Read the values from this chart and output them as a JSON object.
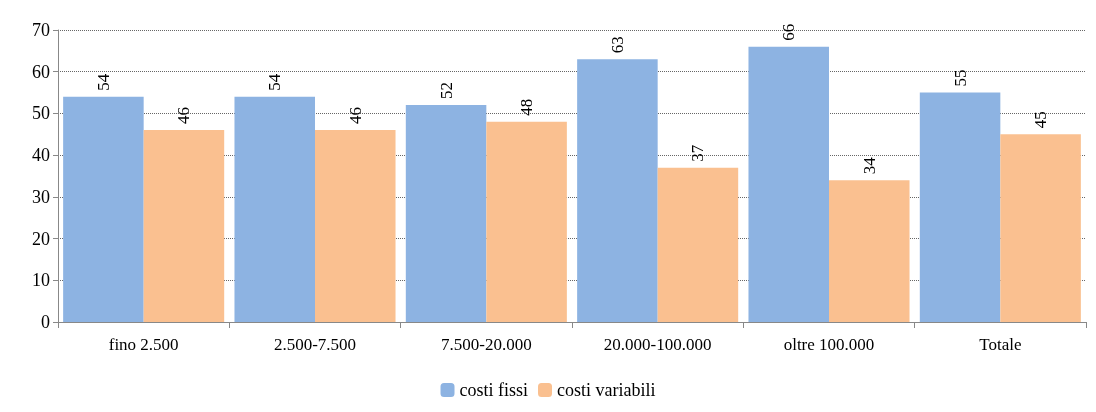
{
  "chart_data": {
    "type": "bar",
    "categories": [
      "fino 2.500",
      "2.500-7.500",
      "7.500-20.000",
      "20.000-100.000",
      "oltre 100.000",
      "Totale"
    ],
    "series": [
      {
        "name": "costi fissi",
        "color": "#8db3e2",
        "values": [
          54,
          54,
          52,
          63,
          66,
          55
        ]
      },
      {
        "name": "costi variabili",
        "color": "#fac090",
        "values": [
          46,
          46,
          48,
          37,
          34,
          45
        ]
      }
    ],
    "ylim": [
      0,
      70
    ],
    "yticks": [
      0,
      10,
      20,
      30,
      40,
      50,
      60,
      70
    ],
    "grid": "y",
    "legend": "bottom",
    "data_labels": true
  }
}
